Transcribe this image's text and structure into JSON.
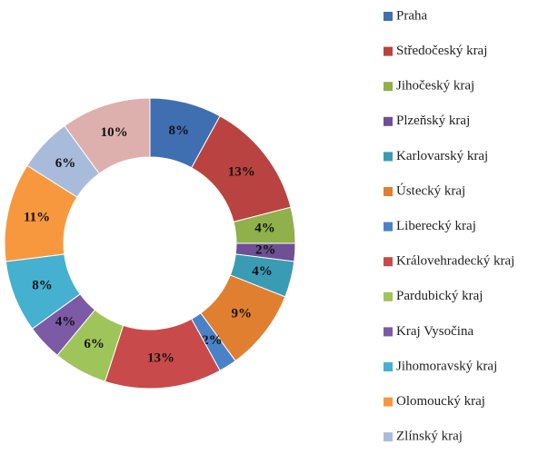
{
  "chart_data": {
    "type": "donut",
    "categories": [
      "Praha",
      "Středočeský kraj",
      "Jihočeský kraj",
      "Plzeňský kraj",
      "Karlovarský kraj",
      "Ústecký kraj",
      "Liberecký kraj",
      "Královehradecký kraj",
      "Pardubický kraj",
      "Kraj Vysočina",
      "Jihomoravský kraj",
      "Olomoucký kraj",
      "Zlínský kraj",
      null
    ],
    "values": [
      8,
      13,
      4,
      2,
      4,
      9,
      2,
      13,
      6,
      4,
      8,
      11,
      6,
      10
    ],
    "value_labels": [
      "8%",
      "13%",
      "4%",
      "2%",
      "4%",
      "9%",
      "2%",
      "13%",
      "6%",
      "4%",
      "8%",
      "11%",
      "6%",
      "10%"
    ],
    "colors": [
      "#3f6fb0",
      "#b94340",
      "#8fb04a",
      "#6f4f95",
      "#3a9bb5",
      "#e07f30",
      "#4a82c8",
      "#c94a4b",
      "#9fc55a",
      "#7c5aa5",
      "#45b0d0",
      "#f7983f",
      "#a9bbdb",
      "#ddb0ae"
    ]
  }
}
